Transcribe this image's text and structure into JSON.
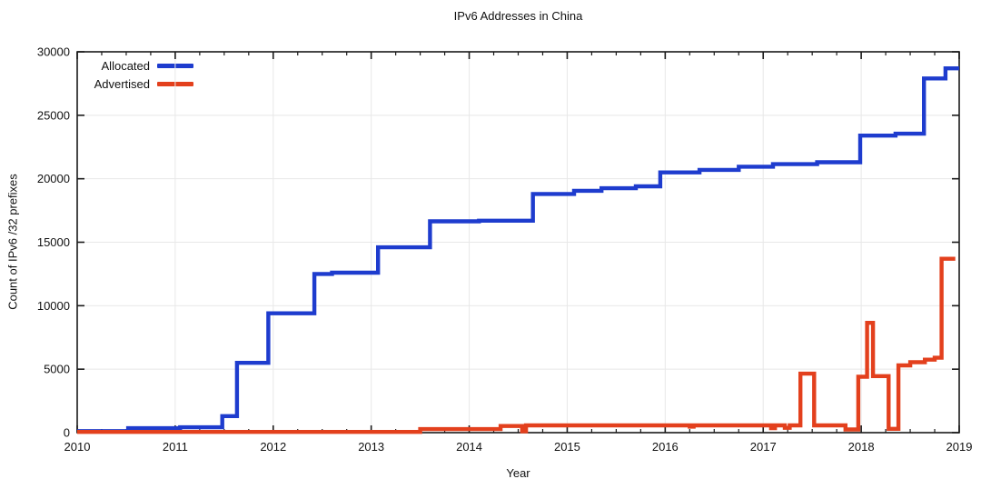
{
  "chart_data": {
    "type": "line",
    "style": "step-after",
    "title": "IPv6 Addresses in China",
    "xlabel": "Year",
    "ylabel": "Count of IPv6 /32 prefixes",
    "xlim": [
      2010,
      2019
    ],
    "ylim": [
      0,
      30000
    ],
    "x_major_ticks": [
      2010,
      2011,
      2012,
      2013,
      2014,
      2015,
      2016,
      2017,
      2018,
      2019
    ],
    "x_minor_step": 0.25,
    "y_major_ticks": [
      0,
      5000,
      10000,
      15000,
      20000,
      25000,
      30000
    ],
    "grid": true,
    "legend_position": "top-left-inside",
    "colors": {
      "allocated": "#1e3cce",
      "advertised": "#e3401d",
      "grid": "#e8e8e8",
      "frame": "#1a1a1a",
      "text": "#111111"
    },
    "series": [
      {
        "name": "Allocated",
        "color": "#1e3cce",
        "x_end": 2019.0,
        "points": [
          [
            2010.0,
            120
          ],
          [
            2010.52,
            350
          ],
          [
            2011.05,
            420
          ],
          [
            2011.48,
            1300
          ],
          [
            2011.63,
            5500
          ],
          [
            2011.95,
            9400
          ],
          [
            2012.42,
            12500
          ],
          [
            2012.6,
            12600
          ],
          [
            2013.07,
            14600
          ],
          [
            2013.6,
            16650
          ],
          [
            2014.1,
            16700
          ],
          [
            2014.65,
            18800
          ],
          [
            2015.07,
            19050
          ],
          [
            2015.35,
            19250
          ],
          [
            2015.7,
            19400
          ],
          [
            2015.95,
            20500
          ],
          [
            2016.35,
            20700
          ],
          [
            2016.75,
            20950
          ],
          [
            2017.1,
            21150
          ],
          [
            2017.55,
            21300
          ],
          [
            2017.99,
            23400
          ],
          [
            2018.35,
            23550
          ],
          [
            2018.64,
            27900
          ],
          [
            2018.86,
            28700
          ]
        ]
      },
      {
        "name": "Advertised",
        "color": "#e3401d",
        "x_end": 2018.96,
        "points": [
          [
            2010.0,
            60
          ],
          [
            2013.5,
            280
          ],
          [
            2014.32,
            520
          ],
          [
            2014.54,
            100
          ],
          [
            2014.58,
            570
          ],
          [
            2016.25,
            470
          ],
          [
            2016.29,
            570
          ],
          [
            2017.08,
            350
          ],
          [
            2017.12,
            570
          ],
          [
            2017.22,
            380
          ],
          [
            2017.27,
            570
          ],
          [
            2017.38,
            4650
          ],
          [
            2017.52,
            570
          ],
          [
            2017.84,
            250
          ],
          [
            2017.97,
            4400
          ],
          [
            2018.06,
            8650
          ],
          [
            2018.12,
            4450
          ],
          [
            2018.28,
            300
          ],
          [
            2018.38,
            5300
          ],
          [
            2018.5,
            5550
          ],
          [
            2018.65,
            5750
          ],
          [
            2018.75,
            5900
          ],
          [
            2018.82,
            13700
          ]
        ]
      }
    ]
  }
}
